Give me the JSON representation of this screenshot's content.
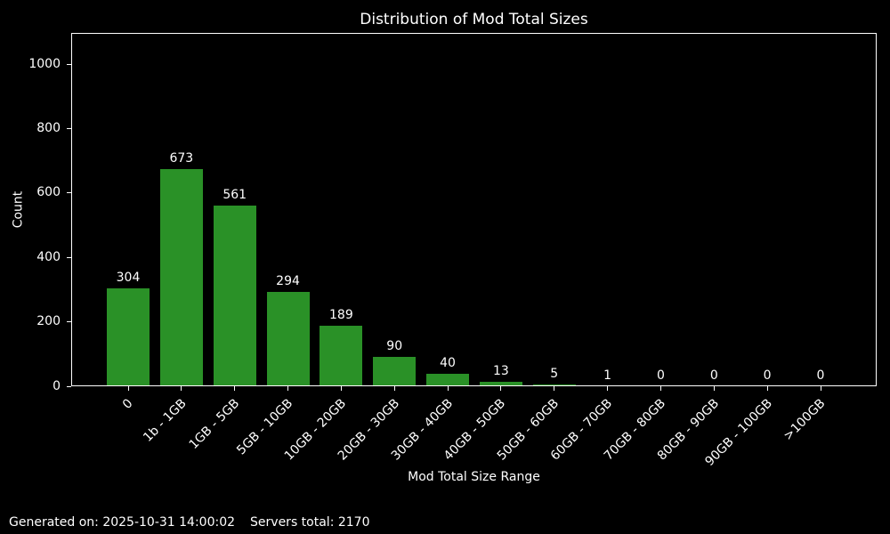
{
  "chart_data": {
    "type": "bar",
    "title": "Distribution of Mod Total Sizes",
    "xlabel": "Mod Total Size Range",
    "ylabel": "Count",
    "categories": [
      "0",
      "1b - 1GB",
      "1GB - 5GB",
      "5GB - 10GB",
      "10GB - 20GB",
      "20GB - 30GB",
      "30GB - 40GB",
      "40GB - 50GB",
      "50GB - 60GB",
      "60GB - 70GB",
      "70GB - 80GB",
      "80GB - 90GB",
      "90GB - 100GB",
      ">100GB"
    ],
    "values": [
      304,
      673,
      561,
      294,
      189,
      90,
      40,
      13,
      5,
      1,
      0,
      0,
      0,
      0
    ],
    "yticks": [
      0,
      200,
      400,
      600,
      800,
      1000
    ],
    "ylim": [
      0,
      1097
    ],
    "xtick_rotation": 45,
    "grid": false,
    "legend": null,
    "bar_labels_shown": true,
    "colors": {
      "bar": "#2a9127",
      "background": "#000000",
      "text": "#ffffff",
      "axis": "#ffffff"
    }
  },
  "footer": {
    "generated": "Generated on: 2025-10-31 14:00:02",
    "servers_total": "Servers total: 2170"
  }
}
